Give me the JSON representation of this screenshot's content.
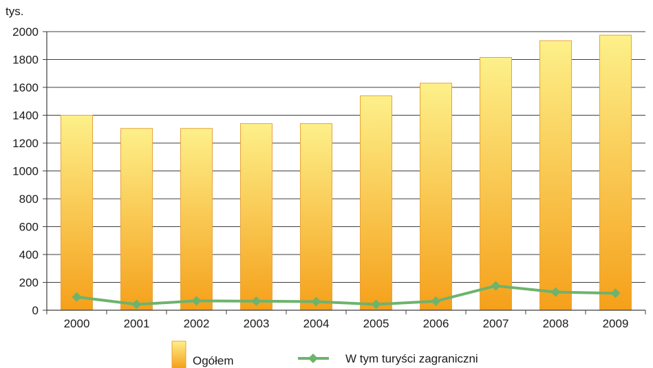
{
  "chart_data": {
    "type": "bar",
    "ylabel": "tys.",
    "ylim": [
      0,
      2000
    ],
    "yticks": [
      0,
      200,
      400,
      600,
      800,
      1000,
      1200,
      1400,
      1600,
      1800,
      2000
    ],
    "grid": true,
    "legend_position": "bottom",
    "categories": [
      "2000",
      "2001",
      "2002",
      "2003",
      "2004",
      "2005",
      "2006",
      "2007",
      "2008",
      "2009"
    ],
    "series": [
      {
        "name": "Ogółem",
        "type": "bar",
        "values": [
          1400,
          1305,
          1305,
          1340,
          1340,
          1540,
          1630,
          1815,
          1935,
          1975
        ],
        "color_top": "#fdf08a",
        "color_bottom": "#f5a01a",
        "border": "#e9a23a"
      },
      {
        "name": "W tym turyści zagraniczni",
        "type": "line",
        "values": [
          95,
          42,
          67,
          65,
          62,
          42,
          65,
          175,
          130,
          122
        ],
        "color": "#6db36d"
      }
    ]
  }
}
